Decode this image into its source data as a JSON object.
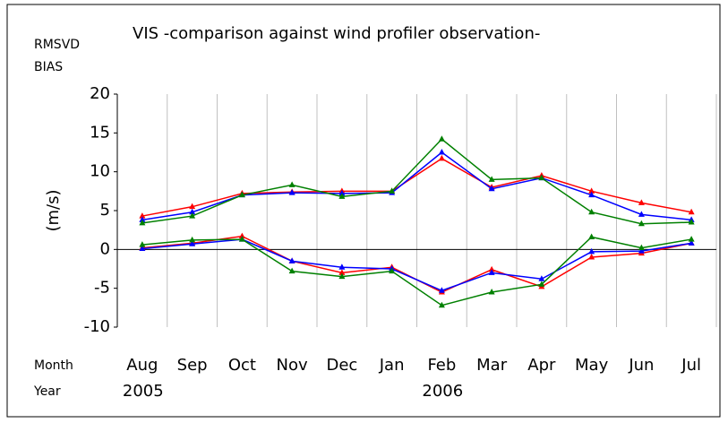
{
  "chart_data": {
    "type": "line",
    "title": "VIS -comparison against wind profiler observation-",
    "metric_labels": [
      "RMSVD",
      "BIAS"
    ],
    "y_label": "(m/s)",
    "x_row_labels": [
      "Month",
      "Year"
    ],
    "categories": [
      "Aug",
      "Sep",
      "Oct",
      "Nov",
      "Dec",
      "Jan",
      "Feb",
      "Mar",
      "Apr",
      "May",
      "Jun",
      "Jul"
    ],
    "years": [
      "2005",
      null,
      null,
      null,
      null,
      null,
      "2006",
      null,
      null,
      null,
      null,
      null
    ],
    "ylim": [
      -10,
      20
    ],
    "yticks": [
      20,
      15,
      10,
      5,
      0,
      -5,
      -10
    ],
    "grid": "vertical",
    "series": [
      {
        "color": "#ff0000",
        "values": [
          4.3,
          5.5,
          7.2,
          7.4,
          7.5,
          7.5,
          11.7,
          8.0,
          9.5,
          7.5,
          6.0,
          4.8
        ]
      },
      {
        "color": "#0000ff",
        "values": [
          3.8,
          4.8,
          7.0,
          7.3,
          7.2,
          7.3,
          12.5,
          7.8,
          9.2,
          7.0,
          4.5,
          3.8
        ]
      },
      {
        "color": "#008000",
        "values": [
          3.4,
          4.3,
          7.0,
          8.3,
          6.8,
          7.5,
          14.2,
          9.0,
          9.2,
          4.8,
          3.3,
          3.5
        ]
      },
      {
        "color": "#ff0000",
        "values": [
          0.2,
          0.8,
          1.7,
          -1.5,
          -3.0,
          -2.3,
          -5.5,
          -2.6,
          -4.8,
          -1.0,
          -0.5,
          0.8
        ]
      },
      {
        "color": "#0000ff",
        "values": [
          0.1,
          0.7,
          1.3,
          -1.5,
          -2.3,
          -2.5,
          -5.3,
          -3.0,
          -3.8,
          -0.3,
          -0.2,
          0.8
        ]
      },
      {
        "color": "#008000",
        "values": [
          0.6,
          1.2,
          1.3,
          -2.8,
          -3.5,
          -2.8,
          -7.2,
          -5.5,
          -4.5,
          1.6,
          0.2,
          1.3
        ]
      }
    ]
  }
}
